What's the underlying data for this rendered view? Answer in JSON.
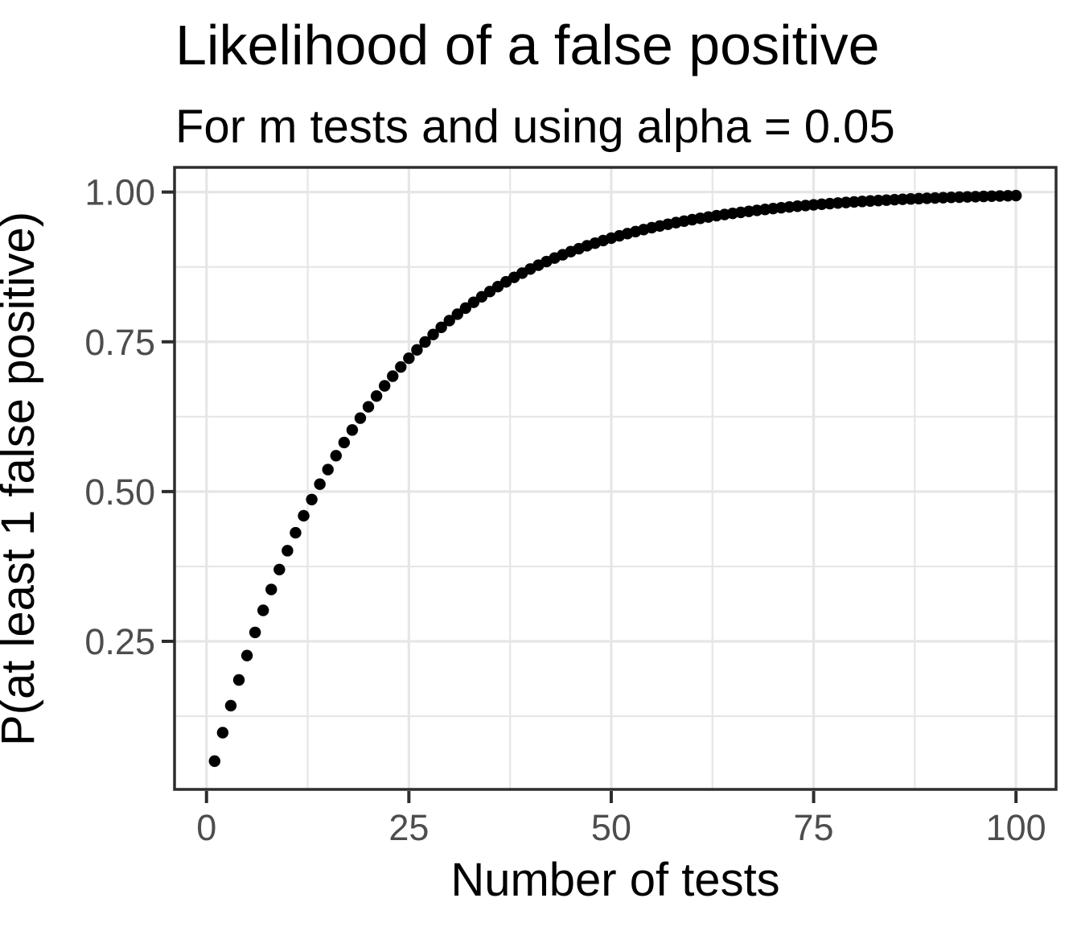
{
  "chart_data": {
    "type": "scatter",
    "title": "Likelihood of a false positive",
    "subtitle": "For m tests and using alpha = 0.05",
    "xlabel": "Number of tests",
    "ylabel": "P(at least 1 false positive)",
    "xlim": [
      -3.95,
      104.95
    ],
    "ylim": [
      0.0028,
      1.0412
    ],
    "grid": true,
    "legend": false,
    "x_ticks": [
      0,
      25,
      50,
      75,
      100
    ],
    "x_tick_labels": [
      "0",
      "25",
      "50",
      "75",
      "100"
    ],
    "x_minor_gridlines": [
      12.5,
      37.5,
      62.5,
      87.5
    ],
    "y_ticks": [
      0.25,
      0.5,
      0.75,
      1.0
    ],
    "y_tick_labels": [
      "0.25",
      "0.50",
      "0.75",
      "1.00"
    ],
    "y_minor_gridlines": [
      0.125,
      0.375,
      0.625,
      0.875
    ],
    "x": [
      1,
      2,
      3,
      4,
      5,
      6,
      7,
      8,
      9,
      10,
      11,
      12,
      13,
      14,
      15,
      16,
      17,
      18,
      19,
      20,
      21,
      22,
      23,
      24,
      25,
      26,
      27,
      28,
      29,
      30,
      31,
      32,
      33,
      34,
      35,
      36,
      37,
      38,
      39,
      40,
      41,
      42,
      43,
      44,
      45,
      46,
      47,
      48,
      49,
      50,
      51,
      52,
      53,
      54,
      55,
      56,
      57,
      58,
      59,
      60,
      61,
      62,
      63,
      64,
      65,
      66,
      67,
      68,
      69,
      70,
      71,
      72,
      73,
      74,
      75,
      76,
      77,
      78,
      79,
      80,
      81,
      82,
      83,
      84,
      85,
      86,
      87,
      88,
      89,
      90,
      91,
      92,
      93,
      94,
      95,
      96,
      97,
      98,
      99,
      100
    ],
    "y": [
      0.05,
      0.0975,
      0.1426,
      0.1855,
      0.2262,
      0.2649,
      0.3017,
      0.3366,
      0.3698,
      0.4013,
      0.4312,
      0.4596,
      0.4867,
      0.5123,
      0.5367,
      0.5599,
      0.5819,
      0.6028,
      0.6226,
      0.6415,
      0.6594,
      0.6765,
      0.6926,
      0.708,
      0.7226,
      0.7365,
      0.7497,
      0.7622,
      0.7741,
      0.7854,
      0.7961,
      0.8063,
      0.816,
      0.8252,
      0.8339,
      0.8422,
      0.8501,
      0.8576,
      0.8647,
      0.8715,
      0.8779,
      0.884,
      0.8898,
      0.8953,
      0.9006,
      0.9055,
      0.9103,
      0.9147,
      0.919,
      0.9231,
      0.9269,
      0.9306,
      0.934,
      0.9373,
      0.9405,
      0.9434,
      0.9463,
      0.949,
      0.9515,
      0.9539,
      0.9562,
      0.9584,
      0.9605,
      0.9625,
      0.9644,
      0.9661,
      0.9678,
      0.9694,
      0.971,
      0.9724,
      0.9738,
      0.9751,
      0.9764,
      0.9775,
      0.9787,
      0.9797,
      0.9807,
      0.9817,
      0.9826,
      0.9835,
      0.9843,
      0.9851,
      0.9858,
      0.9865,
      0.9872,
      0.9879,
      0.9885,
      0.989,
      0.9896,
      0.9901,
      0.9906,
      0.9911,
      0.9915,
      0.9919,
      0.9923,
      0.9927,
      0.9931,
      0.9934,
      0.9938,
      0.9941
    ]
  },
  "style": {
    "background": "#FFFFFF",
    "panel_background": "#FFFFFF",
    "grid_color": "#E6E6E6",
    "panel_border_color": "#2D2D2D",
    "tick_mark_color": "#2D2D2D",
    "tick_label_color": "#4D4D4D",
    "text_color": "#000000",
    "point_color": "#000000"
  }
}
